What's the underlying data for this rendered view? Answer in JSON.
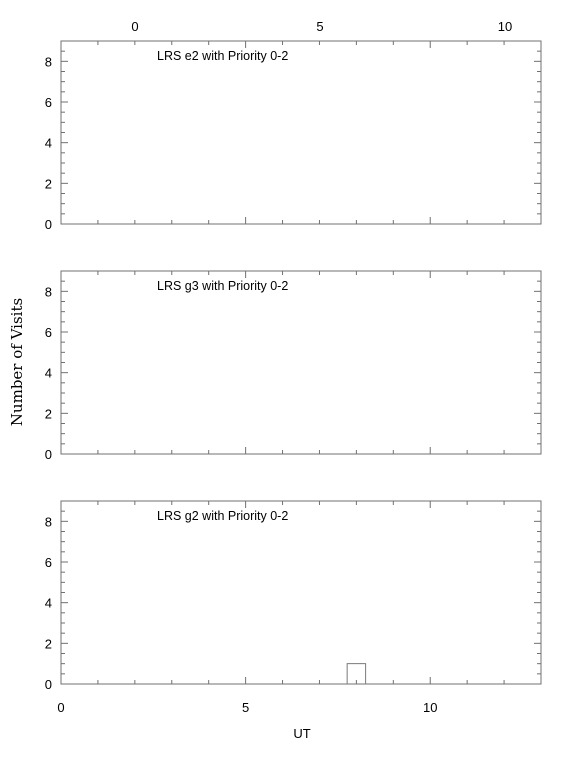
{
  "y_axis_label": "Number of Visits",
  "x_axis_label": "UT",
  "top_axis_ticks": [
    "0",
    "5",
    "10"
  ],
  "bottom_axis_ticks": [
    "0",
    "5",
    "10"
  ],
  "colors": {
    "axis": "#707070",
    "bars": "#7a7a7a",
    "text": "#000000",
    "background": "#ffffff"
  },
  "chart_data": [
    {
      "type": "bar",
      "title": "LRS e2 with Priority 0-2",
      "xlim": [
        0,
        13
      ],
      "ylim": [
        0,
        9
      ],
      "y_ticks": [
        "0",
        "2",
        "4",
        "6",
        "8"
      ],
      "bin_width": 0.5,
      "bars": []
    },
    {
      "type": "bar",
      "title": "LRS g3 with Priority 0-2",
      "xlim": [
        0,
        13
      ],
      "ylim": [
        0,
        9
      ],
      "y_ticks": [
        "0",
        "2",
        "4",
        "6",
        "8"
      ],
      "bin_width": 0.5,
      "bars": []
    },
    {
      "type": "bar",
      "title": "LRS g2 with Priority 0-2",
      "xlim": [
        0,
        13
      ],
      "ylim": [
        0,
        9
      ],
      "y_ticks": [
        "0",
        "2",
        "4",
        "6",
        "8"
      ],
      "bin_width": 0.5,
      "bars": [
        {
          "x_start": 7.75,
          "x_end": 8.25,
          "value": 1
        }
      ]
    }
  ]
}
